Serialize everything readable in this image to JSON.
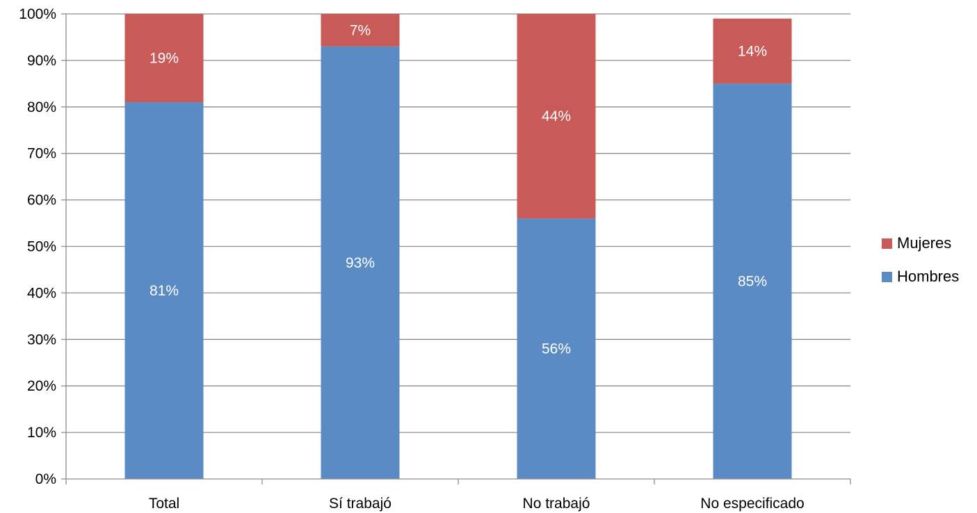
{
  "chart_data": {
    "type": "bar",
    "stacked": true,
    "categories": [
      "Total",
      "Sí trabajó",
      "No trabajó",
      "No especificado"
    ],
    "series": [
      {
        "name": "Hombres",
        "color": "#5B8BC5",
        "values": [
          81,
          93,
          56,
          85
        ],
        "labels": [
          "81%",
          "93%",
          "56%",
          "85%"
        ]
      },
      {
        "name": "Mujeres",
        "color": "#C85A58",
        "values": [
          19,
          7,
          44,
          14
        ],
        "labels": [
          "19%",
          "7%",
          "44%",
          "14%"
        ]
      }
    ],
    "y_ticks": [
      "0%",
      "10%",
      "20%",
      "30%",
      "40%",
      "50%",
      "60%",
      "70%",
      "80%",
      "90%",
      "100%"
    ],
    "ylim": [
      0,
      100
    ],
    "legend": {
      "placement": "right",
      "items": [
        {
          "label": "Mujeres",
          "color": "#C85A58"
        },
        {
          "label": "Hombres",
          "color": "#5B8BC5"
        }
      ]
    },
    "grid": true,
    "gridline_color": "#8c8c8c",
    "axis_color": "#8c8c8c",
    "title": "",
    "xlabel": "",
    "ylabel": ""
  }
}
